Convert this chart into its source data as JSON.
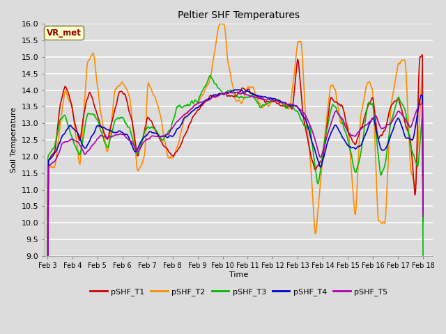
{
  "title": "Peltier SHF Temperatures",
  "xlabel": "Time",
  "ylabel": "Soil Temperature",
  "ylim": [
    9.0,
    16.0
  ],
  "yticks": [
    9.0,
    9.5,
    10.0,
    10.5,
    11.0,
    11.5,
    12.0,
    12.5,
    13.0,
    13.5,
    14.0,
    14.5,
    15.0,
    15.5,
    16.0
  ],
  "xtick_labels": [
    "Feb 3",
    "Feb 4",
    "Feb 5",
    "Feb 6",
    "Feb 7",
    "Feb 8",
    "Feb 9",
    "Feb 10",
    "Feb 11",
    "Feb 12",
    "Feb 13",
    "Feb 14",
    "Feb 15",
    "Feb 16",
    "Feb 17",
    "Feb 18"
  ],
  "colors": {
    "T1": "#cc0000",
    "T2": "#ff8c00",
    "T3": "#00bb00",
    "T4": "#0000cc",
    "T5": "#aa00aa"
  },
  "bg_color": "#dcdcdc",
  "plot_bg_color": "#dcdcdc",
  "grid_color": "#ffffff",
  "vr_met_label": "VR_met",
  "vr_met_fg": "#8b0000",
  "vr_met_bg": "#ffffcc",
  "vr_met_edge": "#888855",
  "legend_labels": [
    "pSHF_T1",
    "pSHF_T2",
    "pSHF_T3",
    "pSHF_T4",
    "pSHF_T5"
  ],
  "figsize": [
    6.4,
    4.8
  ],
  "dpi": 100,
  "linewidth": 1.2,
  "title_fontsize": 10,
  "axis_fontsize": 8,
  "legend_fontsize": 8
}
